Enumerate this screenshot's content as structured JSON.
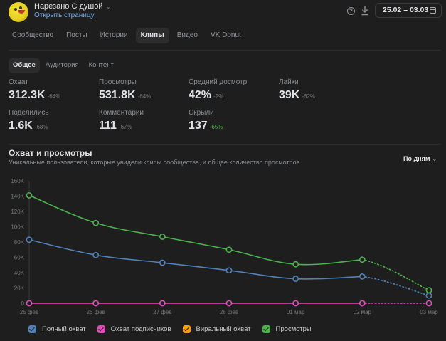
{
  "header": {
    "group_name": "Нарезано С душой",
    "open_page": "Открыть страницу",
    "date_range": "25.02 – 03.03"
  },
  "main_tabs": [
    {
      "label": "Сообщество",
      "active": false
    },
    {
      "label": "Посты",
      "active": false
    },
    {
      "label": "Истории",
      "active": false
    },
    {
      "label": "Клипы",
      "active": true
    },
    {
      "label": "Видео",
      "active": false
    },
    {
      "label": "VK Donut",
      "active": false
    }
  ],
  "sub_tabs": [
    {
      "label": "Общее",
      "active": true
    },
    {
      "label": "Аудитория",
      "active": false
    },
    {
      "label": "Контент",
      "active": false
    }
  ],
  "stats": [
    {
      "label": "Охват",
      "value": "312.3K",
      "change": "-64%",
      "good": false
    },
    {
      "label": "Просмотры",
      "value": "531.8K",
      "change": "-64%",
      "good": false
    },
    {
      "label": "Средний досмотр",
      "value": "42%",
      "change": "-2%",
      "good": false
    },
    {
      "label": "Лайки",
      "value": "39K",
      "change": "-62%",
      "good": false
    },
    {
      "label": "Поделились",
      "value": "1.6K",
      "change": "-68%",
      "good": false
    },
    {
      "label": "Комментарии",
      "value": "111",
      "change": "-67%",
      "good": false
    },
    {
      "label": "Скрыли",
      "value": "137",
      "change": "-65%",
      "good": true
    }
  ],
  "chart_section": {
    "title": "Охват и просмотры",
    "subtitle": "Уникальные пользователи, которые увидели клипы сообщества, и общее количество просмотров",
    "period": "По дням"
  },
  "colors": {
    "full_reach": "#5181b8",
    "subscriber_reach": "#e64ab8",
    "viral_reach": "#ffa000",
    "views": "#4bb34b"
  },
  "chart_data": {
    "type": "line",
    "title": "Охват и просмотры",
    "xlabel": "",
    "ylabel": "",
    "x": [
      "25 фев",
      "26 фев",
      "27 фев",
      "28 фев",
      "01 мар",
      "02 мар",
      "03 мар"
    ],
    "y_ticks": [
      "0",
      "20K",
      "40K",
      "60K",
      "80K",
      "100K",
      "120K",
      "140K",
      "160K"
    ],
    "ylim": [
      0,
      160000
    ],
    "grid": false,
    "legend_position": "bottom",
    "partial_last_segment": true,
    "series": [
      {
        "name": "Полный охват",
        "key": "full_reach",
        "color": "#5181b8",
        "values": [
          83000,
          63000,
          53000,
          43000,
          32000,
          35000,
          10000
        ]
      },
      {
        "name": "Охват подписчиков",
        "key": "subscriber_reach",
        "color": "#e64ab8",
        "values": [
          0,
          0,
          0,
          0,
          0,
          0,
          0
        ]
      },
      {
        "name": "Виральный охват",
        "key": "viral_reach",
        "color": "#ffa000",
        "values": [
          0,
          0,
          0,
          0,
          0,
          0,
          0
        ],
        "hidden": true
      },
      {
        "name": "Просмотры",
        "key": "views",
        "color": "#4bb34b",
        "values": [
          141000,
          105000,
          87000,
          70000,
          51000,
          57000,
          17000
        ]
      }
    ]
  }
}
